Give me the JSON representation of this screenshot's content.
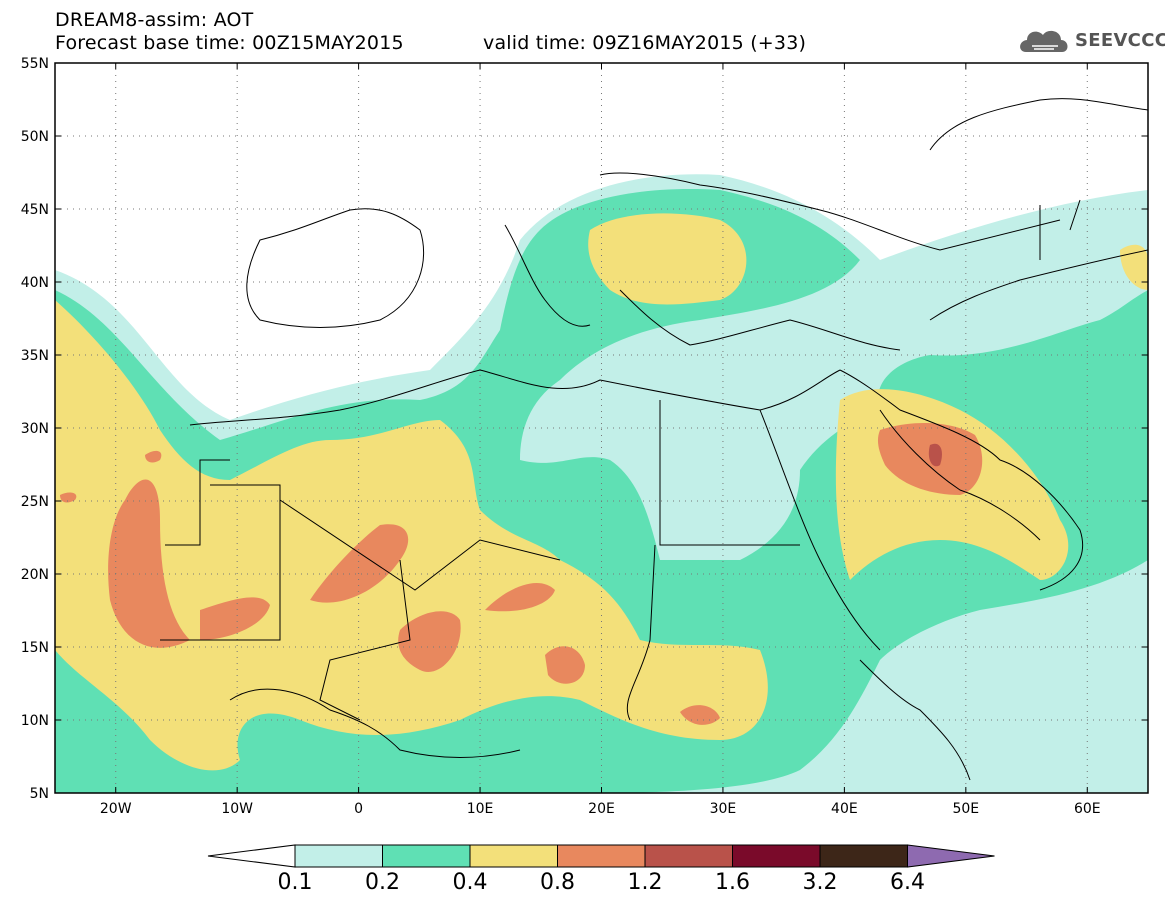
{
  "header": {
    "line1": "DREAM8-assim: AOT",
    "line2": "Forecast base time: 00Z15MAY2015",
    "valid": "valid time: 09Z16MAY2015 (+33)"
  },
  "logo": {
    "text": "SEEVCCC"
  },
  "map": {
    "lon_range": [
      -25,
      65
    ],
    "lat_range": [
      5,
      55
    ],
    "lat_ticks": [
      "55N",
      "50N",
      "45N",
      "40N",
      "35N",
      "30N",
      "25N",
      "20N",
      "15N",
      "10N",
      "5N"
    ],
    "lon_ticks": [
      "20W",
      "10W",
      "0",
      "10E",
      "20E",
      "30E",
      "40E",
      "50E",
      "60E"
    ],
    "grid": "dotted",
    "coastlines": true
  },
  "colorbar": {
    "levels": [
      "0.1",
      "0.2",
      "0.4",
      "0.8",
      "1.2",
      "1.6",
      "3.2",
      "6.4"
    ],
    "colors": [
      "#c2efe8",
      "#5fe0b4",
      "#f3e07a",
      "#e8885e",
      "#b9524a",
      "#7a0a2a",
      "#3d2618",
      "#8e6ab0"
    ]
  }
}
